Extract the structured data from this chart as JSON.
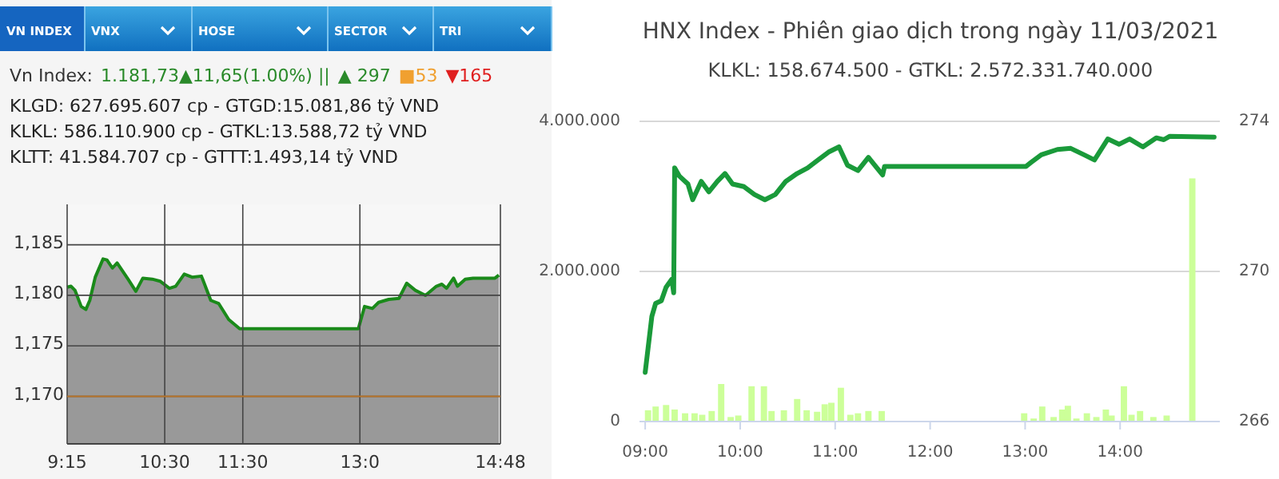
{
  "chart_data": [
    {
      "type": "area",
      "annotations": [
        "VN INDEX",
        "VNX",
        "HOSE",
        "SECTOR",
        "TRI",
        "Vn Index:",
        "1.181,73▲11,65(1.00%) ||",
        "▲ 297",
        "■53",
        "▼165",
        "KLGD: 627.695.607 cp - GTGD:15.081,86 tỷ VND",
        "KLKL: 586.110.900 cp - GTKL:13.588,72 tỷ VND",
        "KLTT: 41.584.707 cp - GTTT:1.493,14 tỷ VND"
      ],
      "x": [
        9.25,
        9.3,
        9.35,
        9.43,
        9.49,
        9.54,
        9.61,
        9.71,
        9.76,
        9.83,
        9.89,
        10.03,
        10.13,
        10.22,
        10.34,
        10.44,
        10.56,
        10.64,
        10.75,
        10.85,
        10.97,
        11.09,
        11.19,
        11.32,
        11.46,
        12.98,
        13.06,
        13.16,
        13.24,
        13.37,
        13.5,
        13.6,
        13.71,
        13.84,
        13.98,
        14.05,
        14.11,
        14.2,
        14.25,
        14.35,
        14.45,
        14.73,
        14.78
      ],
      "series": [
        {
          "color": "#1a8a1a",
          "values": [
            1180.8,
            1180.9,
            1180.5,
            1178.9,
            1178.6,
            1179.5,
            1181.8,
            1183.6,
            1183.5,
            1182.7,
            1183.2,
            1181.6,
            1180.4,
            1181.7,
            1181.6,
            1181.4,
            1180.7,
            1180.9,
            1182.1,
            1181.8,
            1181.9,
            1179.5,
            1179.2,
            1177.6,
            1176.7,
            1176.7,
            1178.9,
            1178.7,
            1179.3,
            1179.6,
            1179.7,
            1181.2,
            1180.5,
            1180.0,
            1180.9,
            1181.1,
            1180.7,
            1181.7,
            1180.9,
            1181.6,
            1181.7,
            1181.7,
            1182.0
          ]
        }
      ],
      "xlim": [
        9.25,
        14.8
      ],
      "xticks": [
        {
          "value": 9.25,
          "label": "9:15"
        },
        {
          "value": 10.5,
          "label": "10:30"
        },
        {
          "value": 11.5,
          "label": "11:30"
        },
        {
          "value": 13,
          "label": "13:0"
        },
        {
          "value": 14.8,
          "label": "14:48"
        }
      ],
      "ylim": [
        1165.3,
        1189
      ],
      "yticks": [
        {
          "value": 1170,
          "label": "1,170"
        },
        {
          "value": 1175,
          "label": "1,175"
        },
        {
          "value": 1180,
          "label": "1,180"
        },
        {
          "value": 1185,
          "label": "1,185"
        }
      ],
      "ref_lines": [
        {
          "axis": "y",
          "value": 1170,
          "color": "#b8752a"
        }
      ],
      "grid": true
    },
    {
      "type": "line",
      "title": "HNX Index - Phiên giao dịch trong ngày 11/03/2021",
      "subtitle": "KLKL: 158.674.500 - GTKL: 2.572.331.740.000",
      "series": [
        {
          "type": "bar",
          "axis": "y",
          "color": "#ccff99",
          "x": [
            9.03,
            9.11,
            9.22,
            9.31,
            9.42,
            9.52,
            9.6,
            9.7,
            9.8,
            9.9,
            9.98,
            10.12,
            10.25,
            10.33,
            10.46,
            10.6,
            10.7,
            10.81,
            10.89,
            10.96,
            11.06,
            11.16,
            11.24,
            11.35,
            11.49,
            12.99,
            13.09,
            13.18,
            13.3,
            13.39,
            13.45,
            13.54,
            13.65,
            13.75,
            13.85,
            13.91,
            14.04,
            14.12,
            14.21,
            14.35,
            14.49,
            14.76
          ],
          "values": [
            150000,
            200000,
            220000,
            160000,
            110000,
            110000,
            90000,
            140000,
            500000,
            60000,
            80000,
            470000,
            470000,
            140000,
            150000,
            300000,
            150000,
            130000,
            230000,
            250000,
            450000,
            90000,
            110000,
            140000,
            140000,
            110000,
            40000,
            200000,
            60000,
            160000,
            210000,
            40000,
            110000,
            60000,
            160000,
            80000,
            470000,
            90000,
            140000,
            60000,
            80000,
            3240000
          ]
        },
        {
          "type": "line",
          "axis": "y2",
          "color": "#1a9a3a",
          "x": [
            9.0,
            9.03,
            9.07,
            9.11,
            9.17,
            9.22,
            9.28,
            9.3,
            9.31,
            9.36,
            9.45,
            9.5,
            9.59,
            9.67,
            9.76,
            9.84,
            9.92,
            10.04,
            10.15,
            10.26,
            10.37,
            10.48,
            10.6,
            10.71,
            10.82,
            10.93,
            11.04,
            11.13,
            11.24,
            11.35,
            11.44,
            11.5,
            11.52,
            13.01,
            13.06,
            13.17,
            13.34,
            13.48,
            13.62,
            13.73,
            13.87,
            13.99,
            14.1,
            14.24,
            14.38,
            14.46,
            14.52,
            14.99
          ],
          "values": [
            267.31,
            267.95,
            268.8,
            269.15,
            269.22,
            269.58,
            269.79,
            269.43,
            272.76,
            272.54,
            272.33,
            271.91,
            272.4,
            272.12,
            272.4,
            272.61,
            272.33,
            272.26,
            272.05,
            271.91,
            272.05,
            272.4,
            272.61,
            272.76,
            272.97,
            273.18,
            273.32,
            272.83,
            272.69,
            273.04,
            272.76,
            272.57,
            272.8,
            272.8,
            272.9,
            273.11,
            273.25,
            273.28,
            273.11,
            272.97,
            273.53,
            273.39,
            273.53,
            273.32,
            273.56,
            273.51,
            273.6,
            273.58
          ]
        }
      ],
      "xlim": [
        8.94,
        15.05
      ],
      "xticks": [
        {
          "value": 9,
          "label": "09:00"
        },
        {
          "value": 10,
          "label": "10:00"
        },
        {
          "value": 11,
          "label": "11:00"
        },
        {
          "value": 12,
          "label": "12:00"
        },
        {
          "value": 13,
          "label": "13:00"
        },
        {
          "value": 14,
          "label": "14:00"
        }
      ],
      "ylim": [
        0,
        4000000
      ],
      "yticks": [
        0,
        {
          "value": 2000000,
          "label": "2.000.000"
        },
        {
          "value": 4000000,
          "label": "4.000.000"
        }
      ],
      "y2lim": [
        266,
        274
      ],
      "y2ticks": [
        266,
        270,
        274
      ],
      "grid": "y"
    }
  ]
}
